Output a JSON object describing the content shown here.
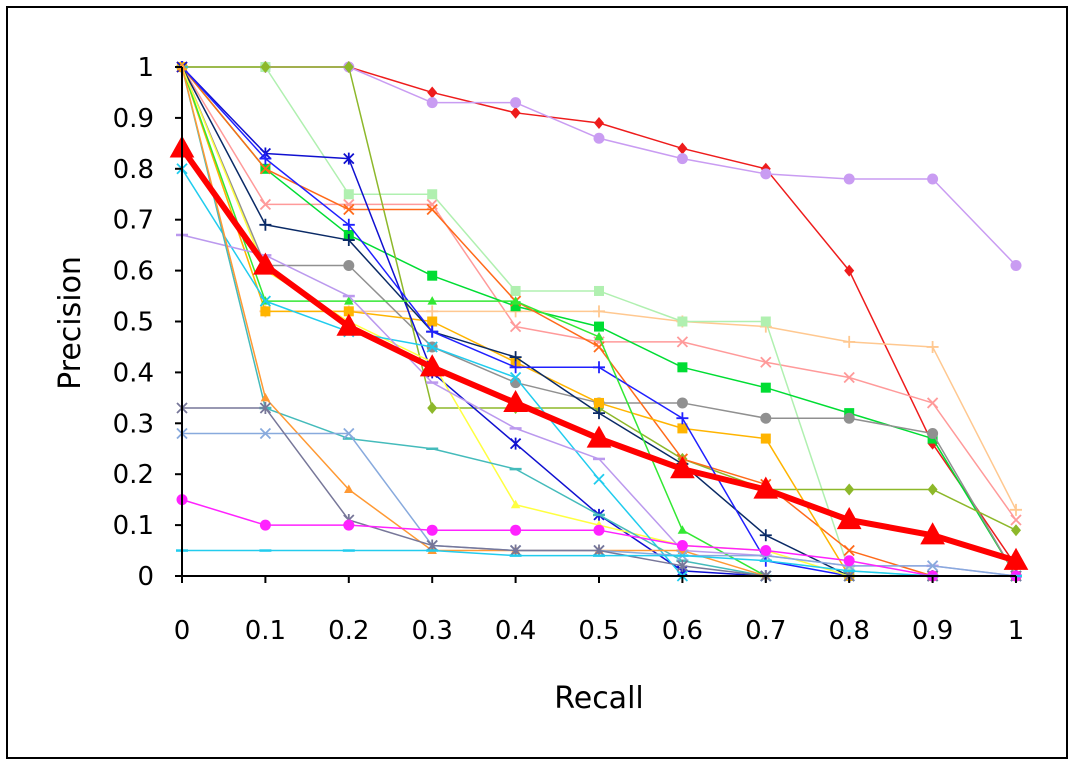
{
  "chart_data": {
    "type": "line",
    "xlabel": "Recall",
    "ylabel": "Precision",
    "xlim": [
      0,
      1
    ],
    "ylim": [
      0,
      1
    ],
    "x": [
      0,
      0.1,
      0.2,
      0.3,
      0.4,
      0.5,
      0.6,
      0.7,
      0.8,
      0.9,
      1
    ],
    "x_tick_labels": [
      "0",
      "0.1",
      "0.2",
      "0.3",
      "0.4",
      "0.5",
      "0.6",
      "0.7",
      "0.8",
      "0.9",
      "1"
    ],
    "y_tick_labels": [
      "0",
      "0.1",
      "0.2",
      "0.3",
      "0.4",
      "0.5",
      "0.6",
      "0.7",
      "0.8",
      "0.9",
      "1"
    ],
    "grid": false,
    "legend": "none",
    "series": [
      {
        "color": "#ee1c1c",
        "marker": "diamond",
        "width": 1.5,
        "values": [
          1,
          1,
          1,
          0.95,
          0.91,
          0.89,
          0.84,
          0.8,
          0.6,
          0.26,
          0.02
        ]
      },
      {
        "color": "#c99cf2",
        "marker": "circle",
        "width": 1.5,
        "values": [
          1,
          1,
          1,
          0.93,
          0.93,
          0.86,
          0.82,
          0.79,
          0.78,
          0.78,
          0.61
        ]
      },
      {
        "color": "#ff9a9a",
        "marker": "x",
        "width": 1.5,
        "values": [
          1,
          0.73,
          0.73,
          0.73,
          0.49,
          0.46,
          0.46,
          0.42,
          0.39,
          0.34,
          0.11
        ]
      },
      {
        "color": "#ffc890",
        "marker": "plus",
        "width": 1.5,
        "values": [
          1,
          0.52,
          0.52,
          0.52,
          0.52,
          0.52,
          0.5,
          0.49,
          0.46,
          0.45,
          0.13
        ]
      },
      {
        "color": "#b0f0b0",
        "marker": "square",
        "width": 1.5,
        "values": [
          1,
          1,
          0.75,
          0.75,
          0.56,
          0.56,
          0.5,
          0.5,
          0.01,
          0,
          0
        ]
      },
      {
        "color": "#00dd33",
        "marker": "square",
        "width": 1.5,
        "values": [
          1,
          0.8,
          0.67,
          0.59,
          0.53,
          0.49,
          0.41,
          0.37,
          0.32,
          0.27,
          0
        ]
      },
      {
        "color": "#909090",
        "marker": "circle",
        "width": 1.5,
        "values": [
          1,
          0.61,
          0.61,
          0.45,
          0.38,
          0.34,
          0.34,
          0.31,
          0.31,
          0.28,
          0
        ]
      },
      {
        "color": "#8db82a",
        "marker": "diamond",
        "width": 1.5,
        "values": [
          1,
          1,
          1,
          0.33,
          0.33,
          0.33,
          0.23,
          0.17,
          0.17,
          0.17,
          0.09
        ]
      },
      {
        "color": "#ff6a1a",
        "marker": "x",
        "width": 1.5,
        "values": [
          1,
          0.8,
          0.72,
          0.72,
          0.54,
          0.45,
          0.23,
          0.18,
          0.05,
          0,
          0
        ]
      },
      {
        "color": "#ffb400",
        "marker": "square",
        "width": 1.5,
        "values": [
          1,
          0.52,
          0.52,
          0.5,
          0.42,
          0.34,
          0.29,
          0.27,
          0,
          0,
          0
        ]
      },
      {
        "color": "#1010d0",
        "marker": "star",
        "width": 1.5,
        "values": [
          1,
          0.83,
          0.82,
          0.4,
          0.26,
          0.12,
          0.01,
          0,
          0,
          0,
          0
        ]
      },
      {
        "color": "#0a2a66",
        "marker": "plus",
        "width": 1.5,
        "values": [
          1,
          0.69,
          0.66,
          0.48,
          0.43,
          0.32,
          0.22,
          0.08,
          0,
          0,
          0
        ]
      },
      {
        "color": "#2020ff",
        "marker": "plus",
        "width": 1.5,
        "values": [
          1,
          0.82,
          0.69,
          0.48,
          0.41,
          0.41,
          0.31,
          0.03,
          0,
          0,
          0
        ]
      },
      {
        "color": "#33e833",
        "marker": "triangle",
        "width": 1.5,
        "values": [
          1,
          0.54,
          0.54,
          0.54,
          0.54,
          0.47,
          0.09,
          0,
          0,
          0,
          0
        ]
      },
      {
        "color": "#ffff40",
        "marker": "triangle",
        "width": 1.5,
        "values": [
          1,
          0.6,
          0.5,
          0.42,
          0.14,
          0.1,
          0.06,
          0.05,
          0,
          0,
          0
        ]
      },
      {
        "color": "#20ccee",
        "marker": "x",
        "width": 1.5,
        "values": [
          0.8,
          0.54,
          0.48,
          0.45,
          0.39,
          0.19,
          0,
          0,
          0,
          0,
          0
        ]
      },
      {
        "color": "#bb99ee",
        "marker": "dash",
        "width": 1.5,
        "values": [
          0.67,
          0.63,
          0.55,
          0.38,
          0.29,
          0.23,
          0.05,
          0.04,
          0.02,
          0.02,
          0
        ]
      },
      {
        "color": "#44bbbb",
        "marker": "dash",
        "width": 1.5,
        "values": [
          1,
          0.33,
          0.27,
          0.25,
          0.21,
          0.12,
          0.03,
          0,
          0,
          0,
          0
        ]
      },
      {
        "color": "#ff9933",
        "marker": "triangle",
        "width": 1.5,
        "values": [
          1,
          0.35,
          0.17,
          0.05,
          0.05,
          0.05,
          0.05,
          0,
          0,
          0,
          0
        ]
      },
      {
        "color": "#88aadd",
        "marker": "x",
        "width": 1.5,
        "values": [
          0.28,
          0.28,
          0.28,
          0.06,
          0.05,
          0.05,
          0.04,
          0.04,
          0.02,
          0.02,
          0
        ]
      },
      {
        "color": "#777799",
        "marker": "star",
        "width": 1.5,
        "values": [
          0.33,
          0.33,
          0.11,
          0.06,
          0.05,
          0.05,
          0.02,
          0,
          0,
          0,
          0
        ]
      },
      {
        "color": "#ff22ff",
        "marker": "circle",
        "width": 1.5,
        "values": [
          0.15,
          0.1,
          0.1,
          0.09,
          0.09,
          0.09,
          0.06,
          0.05,
          0.03,
          0,
          0
        ]
      },
      {
        "color": "#22ccee",
        "marker": "dash",
        "width": 1.5,
        "values": [
          0.05,
          0.05,
          0.05,
          0.05,
          0.04,
          0.04,
          0.04,
          0.03,
          0.01,
          0,
          0
        ]
      },
      {
        "color": "#ff0000",
        "marker": "triangle",
        "width": 6,
        "values": [
          0.84,
          0.61,
          0.49,
          0.41,
          0.34,
          0.27,
          0.21,
          0.17,
          0.11,
          0.08,
          0.03
        ]
      }
    ]
  }
}
